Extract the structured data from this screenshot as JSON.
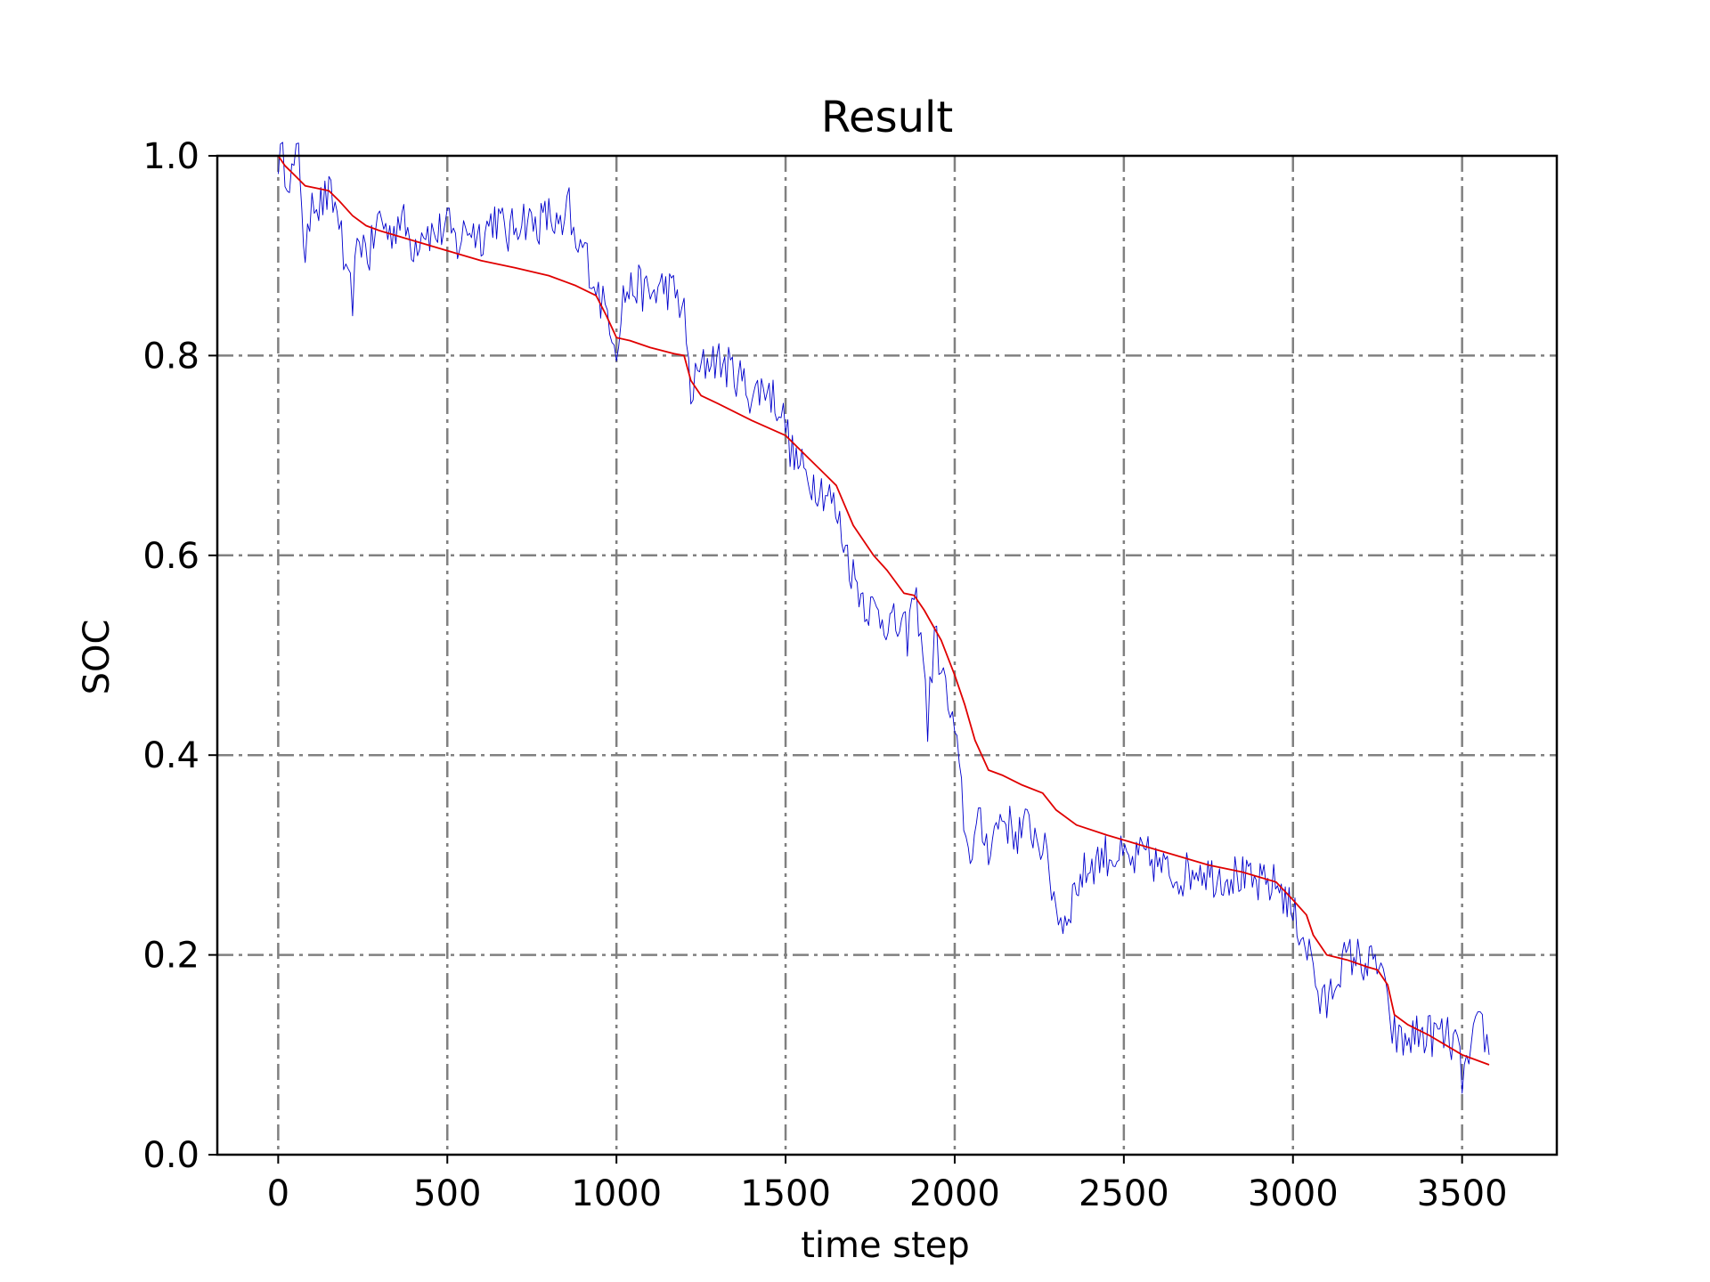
{
  "chart_data": {
    "type": "line",
    "title": "Result",
    "xlabel": "time step",
    "ylabel": "SOC",
    "xlim": [
      -180,
      3780
    ],
    "ylim": [
      0.0,
      1.0
    ],
    "x_ticks": [
      0,
      500,
      1000,
      1500,
      2000,
      2500,
      3000,
      3500
    ],
    "x_tick_labels": [
      "0",
      "500",
      "1000",
      "1500",
      "2000",
      "2500",
      "3000",
      "3500"
    ],
    "y_ticks": [
      0.0,
      0.2,
      0.4,
      0.6,
      0.8,
      1.0
    ],
    "y_tick_labels": [
      "0.0",
      "0.2",
      "0.4",
      "0.6",
      "0.8",
      "1.0"
    ],
    "grid": true,
    "grid_style": "dash-dot",
    "grid_color": "#808080",
    "series": [
      {
        "color": "#0000cc",
        "noisy": true,
        "points": [
          [
            0,
            1.0
          ],
          [
            20,
            0.99
          ],
          [
            40,
            0.98
          ],
          [
            60,
            1.0
          ],
          [
            70,
            0.96
          ],
          [
            80,
            0.88
          ],
          [
            100,
            0.97
          ],
          [
            120,
            0.95
          ],
          [
            150,
            0.96
          ],
          [
            180,
            0.94
          ],
          [
            200,
            0.87
          ],
          [
            220,
            0.86
          ],
          [
            240,
            0.92
          ],
          [
            270,
            0.9
          ],
          [
            300,
            0.94
          ],
          [
            330,
            0.92
          ],
          [
            360,
            0.94
          ],
          [
            400,
            0.91
          ],
          [
            430,
            0.93
          ],
          [
            460,
            0.92
          ],
          [
            500,
            0.93
          ],
          [
            530,
            0.91
          ],
          [
            560,
            0.93
          ],
          [
            600,
            0.92
          ],
          [
            640,
            0.94
          ],
          [
            680,
            0.92
          ],
          [
            720,
            0.94
          ],
          [
            760,
            0.93
          ],
          [
            800,
            0.94
          ],
          [
            840,
            0.92
          ],
          [
            860,
            0.95
          ],
          [
            880,
            0.9
          ],
          [
            900,
            0.91
          ],
          [
            920,
            0.89
          ],
          [
            940,
            0.87
          ],
          [
            960,
            0.85
          ],
          [
            980,
            0.84
          ],
          [
            1000,
            0.81
          ],
          [
            1020,
            0.86
          ],
          [
            1060,
            0.87
          ],
          [
            1100,
            0.86
          ],
          [
            1140,
            0.87
          ],
          [
            1180,
            0.86
          ],
          [
            1200,
            0.84
          ],
          [
            1220,
            0.76
          ],
          [
            1240,
            0.78
          ],
          [
            1280,
            0.8
          ],
          [
            1320,
            0.79
          ],
          [
            1360,
            0.78
          ],
          [
            1400,
            0.76
          ],
          [
            1440,
            0.77
          ],
          [
            1480,
            0.75
          ],
          [
            1500,
            0.73
          ],
          [
            1520,
            0.7
          ],
          [
            1560,
            0.68
          ],
          [
            1600,
            0.67
          ],
          [
            1630,
            0.66
          ],
          [
            1660,
            0.63
          ],
          [
            1700,
            0.58
          ],
          [
            1740,
            0.55
          ],
          [
            1780,
            0.54
          ],
          [
            1820,
            0.53
          ],
          [
            1860,
            0.52
          ],
          [
            1880,
            0.56
          ],
          [
            1900,
            0.53
          ],
          [
            1920,
            0.43
          ],
          [
            1940,
            0.52
          ],
          [
            1960,
            0.49
          ],
          [
            1980,
            0.45
          ],
          [
            2000,
            0.42
          ],
          [
            2020,
            0.36
          ],
          [
            2040,
            0.3
          ],
          [
            2070,
            0.33
          ],
          [
            2100,
            0.31
          ],
          [
            2140,
            0.34
          ],
          [
            2180,
            0.32
          ],
          [
            2220,
            0.33
          ],
          [
            2260,
            0.31
          ],
          [
            2280,
            0.28
          ],
          [
            2300,
            0.25
          ],
          [
            2320,
            0.23
          ],
          [
            2360,
            0.27
          ],
          [
            2400,
            0.29
          ],
          [
            2440,
            0.3
          ],
          [
            2480,
            0.3
          ],
          [
            2520,
            0.29
          ],
          [
            2560,
            0.3
          ],
          [
            2600,
            0.29
          ],
          [
            2640,
            0.28
          ],
          [
            2680,
            0.28
          ],
          [
            2720,
            0.29
          ],
          [
            2760,
            0.28
          ],
          [
            2800,
            0.28
          ],
          [
            2840,
            0.28
          ],
          [
            2880,
            0.27
          ],
          [
            2920,
            0.27
          ],
          [
            2960,
            0.27
          ],
          [
            3000,
            0.24
          ],
          [
            3030,
            0.22
          ],
          [
            3060,
            0.19
          ],
          [
            3080,
            0.15
          ],
          [
            3100,
            0.15
          ],
          [
            3140,
            0.19
          ],
          [
            3180,
            0.2
          ],
          [
            3220,
            0.19
          ],
          [
            3260,
            0.19
          ],
          [
            3280,
            0.14
          ],
          [
            3300,
            0.12
          ],
          [
            3320,
            0.11
          ],
          [
            3360,
            0.12
          ],
          [
            3400,
            0.12
          ],
          [
            3440,
            0.12
          ],
          [
            3480,
            0.11
          ],
          [
            3500,
            0.08
          ],
          [
            3520,
            0.09
          ],
          [
            3540,
            0.12
          ],
          [
            3560,
            0.13
          ],
          [
            3580,
            0.1
          ]
        ]
      },
      {
        "color": "#e00000",
        "noisy": false,
        "points": [
          [
            0,
            1.0
          ],
          [
            20,
            0.99
          ],
          [
            50,
            0.98
          ],
          [
            80,
            0.97
          ],
          [
            150,
            0.965
          ],
          [
            180,
            0.955
          ],
          [
            220,
            0.94
          ],
          [
            260,
            0.93
          ],
          [
            300,
            0.925
          ],
          [
            400,
            0.915
          ],
          [
            500,
            0.905
          ],
          [
            600,
            0.895
          ],
          [
            700,
            0.888
          ],
          [
            800,
            0.88
          ],
          [
            880,
            0.87
          ],
          [
            940,
            0.86
          ],
          [
            970,
            0.84
          ],
          [
            1000,
            0.818
          ],
          [
            1040,
            0.815
          ],
          [
            1100,
            0.808
          ],
          [
            1170,
            0.802
          ],
          [
            1200,
            0.8
          ],
          [
            1220,
            0.775
          ],
          [
            1250,
            0.76
          ],
          [
            1300,
            0.752
          ],
          [
            1400,
            0.735
          ],
          [
            1500,
            0.72
          ],
          [
            1560,
            0.7
          ],
          [
            1620,
            0.68
          ],
          [
            1650,
            0.67
          ],
          [
            1700,
            0.63
          ],
          [
            1760,
            0.6
          ],
          [
            1800,
            0.585
          ],
          [
            1850,
            0.562
          ],
          [
            1880,
            0.56
          ],
          [
            1910,
            0.545
          ],
          [
            1960,
            0.515
          ],
          [
            2000,
            0.48
          ],
          [
            2030,
            0.45
          ],
          [
            2060,
            0.415
          ],
          [
            2100,
            0.385
          ],
          [
            2140,
            0.38
          ],
          [
            2200,
            0.37
          ],
          [
            2260,
            0.362
          ],
          [
            2300,
            0.345
          ],
          [
            2360,
            0.33
          ],
          [
            2450,
            0.32
          ],
          [
            2550,
            0.31
          ],
          [
            2650,
            0.3
          ],
          [
            2750,
            0.29
          ],
          [
            2850,
            0.283
          ],
          [
            2950,
            0.273
          ],
          [
            3000,
            0.255
          ],
          [
            3040,
            0.24
          ],
          [
            3060,
            0.22
          ],
          [
            3100,
            0.2
          ],
          [
            3160,
            0.195
          ],
          [
            3220,
            0.188
          ],
          [
            3250,
            0.185
          ],
          [
            3280,
            0.17
          ],
          [
            3300,
            0.14
          ],
          [
            3340,
            0.13
          ],
          [
            3400,
            0.12
          ],
          [
            3460,
            0.108
          ],
          [
            3500,
            0.1
          ],
          [
            3540,
            0.095
          ],
          [
            3580,
            0.09
          ]
        ]
      }
    ]
  }
}
